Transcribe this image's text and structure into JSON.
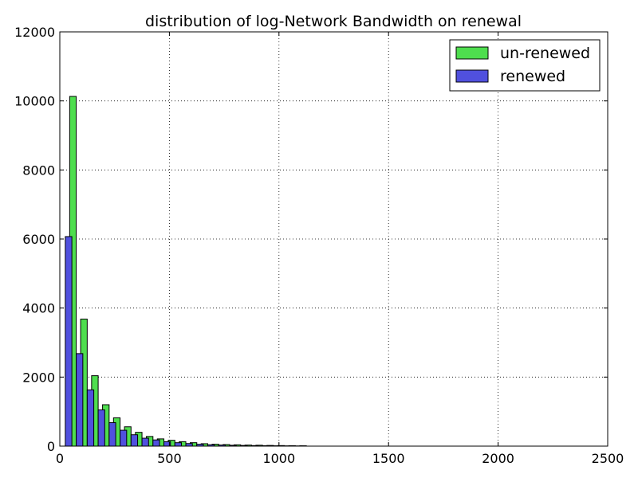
{
  "chart_data": {
    "type": "bar",
    "title": "distribution of log-Network Bandwidth on renewal",
    "xlabel": "",
    "ylabel": "",
    "xlim": [
      0,
      2500
    ],
    "ylim": [
      0,
      12000
    ],
    "xticks": [
      "0",
      "500",
      "1000",
      "1500",
      "2000",
      "2500"
    ],
    "yticks": [
      "0",
      "2000",
      "4000",
      "6000",
      "8000",
      "10000",
      "12000"
    ],
    "grid": true,
    "legend_position": "top-right",
    "bin_width": 50,
    "x": [
      50,
      100,
      150,
      200,
      250,
      300,
      350,
      400,
      450,
      500,
      550,
      600,
      650,
      700,
      750,
      800,
      850,
      900,
      950,
      1000,
      1050,
      1100
    ],
    "series": [
      {
        "name": "un-renewed",
        "color": "#4ede4e",
        "values": [
          10130,
          3680,
          2040,
          1200,
          820,
          560,
          400,
          280,
          210,
          170,
          130,
          100,
          70,
          55,
          45,
          38,
          30,
          26,
          20,
          16,
          12,
          10
        ]
      },
      {
        "name": "renewed",
        "color": "#5050de",
        "values": [
          6070,
          2680,
          1630,
          1050,
          680,
          460,
          330,
          230,
          180,
          130,
          100,
          75,
          55,
          40,
          32,
          25,
          20,
          16,
          12,
          10,
          8,
          6
        ]
      }
    ]
  }
}
